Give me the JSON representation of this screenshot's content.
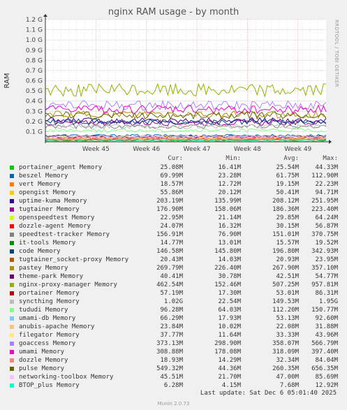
{
  "chart_data": {
    "type": "line",
    "title": "nginx RAM usage - by month",
    "ylabel": "RAM",
    "ylim": [
      0,
      1.2
    ],
    "y_unit": "G",
    "y_ticks": [
      "0.1 G",
      "0.2 G",
      "0.3 G",
      "0.4 G",
      "0.5 G",
      "0.6 G",
      "0.7 G",
      "0.8 G",
      "0.9 G",
      "1.0 G",
      "1.1 G",
      "1.2 G"
    ],
    "y_tick_values": [
      0.1,
      0.2,
      0.3,
      0.4,
      0.5,
      0.6,
      0.7,
      0.8,
      0.9,
      1.0,
      1.1,
      1.2
    ],
    "x_ticks": [
      "Week 45",
      "Week 46",
      "Week 47",
      "Week 48",
      "Week 49"
    ],
    "x_tick_positions": [
      0.18,
      0.36,
      0.54,
      0.72,
      0.9
    ],
    "grid": true,
    "side_label": "RRDTOOL / TOBI OETIKER",
    "legend_headers": [
      "Cur:",
      "Min:",
      "Avg:",
      "Max:"
    ],
    "series": [
      {
        "name": "portainer_agent Memory",
        "color": "#00CC00",
        "cur": "25.08M",
        "min": "16.41M",
        "avg": "25.54M",
        "max": "44.33M",
        "v": 0.025
      },
      {
        "name": "beszel Memory",
        "color": "#0066B3",
        "cur": "69.99M",
        "min": "23.28M",
        "avg": "61.75M",
        "max": "112.90M",
        "v": 0.062
      },
      {
        "name": "vert Memory",
        "color": "#FF8000",
        "cur": "18.57M",
        "min": "12.72M",
        "avg": "19.15M",
        "max": "22.23M",
        "v": 0.019
      },
      {
        "name": "opengist Memory",
        "color": "#FFCC00",
        "cur": "55.86M",
        "min": "20.12M",
        "avg": "50.41M",
        "max": "94.71M",
        "v": 0.05
      },
      {
        "name": "uptime-kuma Memory",
        "color": "#330099",
        "cur": "203.19M",
        "min": "135.99M",
        "avg": "208.12M",
        "max": "251.95M",
        "v": 0.208
      },
      {
        "name": "tugtainer Memory",
        "color": "#990099",
        "cur": "176.90M",
        "min": "158.06M",
        "avg": "186.36M",
        "max": "223.40M",
        "v": 0.186
      },
      {
        "name": "openspeedtest Memory",
        "color": "#CCFF00",
        "cur": "22.95M",
        "min": "21.14M",
        "avg": "29.85M",
        "max": "64.24M",
        "v": 0.03
      },
      {
        "name": "dozzle-agent Memory",
        "color": "#FF0000",
        "cur": "24.07M",
        "min": "16.32M",
        "avg": "30.15M",
        "max": "56.87M",
        "v": 0.03
      },
      {
        "name": "speedtest-tracker Memory",
        "color": "#808080",
        "cur": "156.91M",
        "min": "76.90M",
        "avg": "151.01M",
        "max": "370.75M",
        "v": 0.151
      },
      {
        "name": "it-tools Memory",
        "color": "#008F00",
        "cur": "14.77M",
        "min": "13.01M",
        "avg": "15.57M",
        "max": "19.52M",
        "v": 0.016
      },
      {
        "name": "code Memory",
        "color": "#00487D",
        "cur": "146.58M",
        "min": "145.80M",
        "avg": "196.80M",
        "max": "342.93M",
        "v": 0.197
      },
      {
        "name": "tugtainer_socket-proxy Memory",
        "color": "#B35A00",
        "cur": "20.43M",
        "min": "14.03M",
        "avg": "20.93M",
        "max": "23.95M",
        "v": 0.021
      },
      {
        "name": "pastey Memory",
        "color": "#B38F00",
        "cur": "269.79M",
        "min": "226.40M",
        "avg": "267.90M",
        "max": "357.10M",
        "v": 0.268
      },
      {
        "name": "theme-park Memory",
        "color": "#6B006B",
        "cur": "40.41M",
        "min": "30.78M",
        "avg": "42.51M",
        "max": "54.77M",
        "v": 0.043
      },
      {
        "name": "nginx-proxy-manager Memory",
        "color": "#8FB300",
        "cur": "462.54M",
        "min": "152.46M",
        "avg": "507.25M",
        "max": "957.81M",
        "v": 0.507
      },
      {
        "name": "portainer Memory",
        "color": "#B30000",
        "cur": "57.19M",
        "min": "17.30M",
        "avg": "53.01M",
        "max": "86.31M",
        "v": 0.053
      },
      {
        "name": "syncthing Memory",
        "color": "#BEBEBE",
        "cur": "1.02G",
        "min": "22.54M",
        "avg": "149.53M",
        "max": "1.95G",
        "v": 0.15
      },
      {
        "name": "tududi Memory",
        "color": "#80FF80",
        "cur": "96.28M",
        "min": "64.03M",
        "avg": "112.20M",
        "max": "150.77M",
        "v": 0.112
      },
      {
        "name": "umami-db Memory",
        "color": "#80C9FF",
        "cur": "66.29M",
        "min": "17.93M",
        "avg": "53.13M",
        "max": "92.60M",
        "v": 0.053
      },
      {
        "name": "anubis-apache Memory",
        "color": "#FFC080",
        "cur": "23.84M",
        "min": "10.02M",
        "avg": "22.08M",
        "max": "31.88M",
        "v": 0.022
      },
      {
        "name": "filegator Memory",
        "color": "#FFE680",
        "cur": "37.77M",
        "min": "11.64M",
        "avg": "33.33M",
        "max": "43.96M",
        "v": 0.033
      },
      {
        "name": "goaccess Memory",
        "color": "#AA80FF",
        "cur": "373.13M",
        "min": "298.90M",
        "avg": "358.07M",
        "max": "566.79M",
        "v": 0.358
      },
      {
        "name": "umami Memory",
        "color": "#EE00CC",
        "cur": "308.88M",
        "min": "178.08M",
        "avg": "318.09M",
        "max": "397.40M",
        "v": 0.318
      },
      {
        "name": "dozzle Memory",
        "color": "#FF8080",
        "cur": "18.93M",
        "min": "14.29M",
        "avg": "32.34M",
        "max": "84.04M",
        "v": 0.032
      },
      {
        "name": "pulse Memory",
        "color": "#666600",
        "cur": "549.32M",
        "min": "44.36M",
        "avg": "260.35M",
        "max": "656.35M",
        "v": 0.26
      },
      {
        "name": "networking-toolbox Memory",
        "color": "#FFBFFF",
        "cur": "45.51M",
        "min": "21.70M",
        "avg": "47.00M",
        "max": "85.69M",
        "v": 0.047
      },
      {
        "name": "BTOP_plus Memory",
        "color": "#00FFCC",
        "cur": "6.28M",
        "min": "4.15M",
        "avg": "7.68M",
        "max": "12.92M",
        "v": 0.008
      }
    ],
    "last_update": "Last update: Sat Dec  6 05:01:40 2025",
    "version": "Munin 2.0.73"
  }
}
